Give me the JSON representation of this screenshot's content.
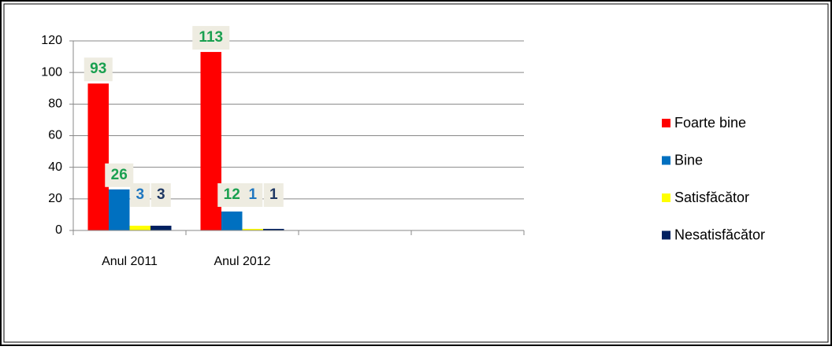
{
  "chart_data": {
    "type": "bar",
    "categories": [
      "Anul 2011",
      "Anul 2012",
      null,
      null
    ],
    "series": [
      {
        "name": "Foarte bine",
        "color": "#ff0000",
        "label_color": "#1aa050",
        "values": [
          93,
          113,
          null,
          null
        ]
      },
      {
        "name": "Bine",
        "color": "#0070c0",
        "label_color": "#1aa050",
        "values": [
          26,
          12,
          null,
          null
        ]
      },
      {
        "name": "Satisfăcător",
        "color": "#ffff00",
        "label_color": "#1f77c0",
        "values": [
          3,
          1,
          null,
          null
        ]
      },
      {
        "name": "Nesatisfăcător",
        "color": "#002060",
        "label_color": "#1f3864",
        "values": [
          3,
          1,
          null,
          null
        ]
      }
    ],
    "ylim": [
      0,
      120
    ],
    "yticks": [
      0,
      20,
      40,
      60,
      80,
      100,
      120
    ],
    "grid": true,
    "legend": "right"
  }
}
